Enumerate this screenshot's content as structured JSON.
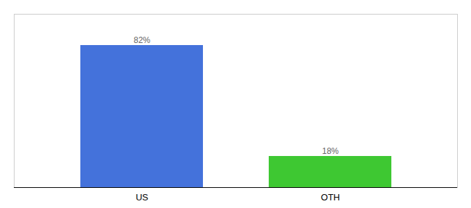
{
  "chart_data": {
    "type": "bar",
    "categories": [
      "US",
      "OTH"
    ],
    "values": [
      82,
      18
    ],
    "value_labels": [
      "82%",
      "18%"
    ],
    "colors": [
      "#4472db",
      "#3ec832"
    ],
    "ylim": [
      0,
      100
    ],
    "data_labels": true,
    "tick_labels": "x"
  }
}
